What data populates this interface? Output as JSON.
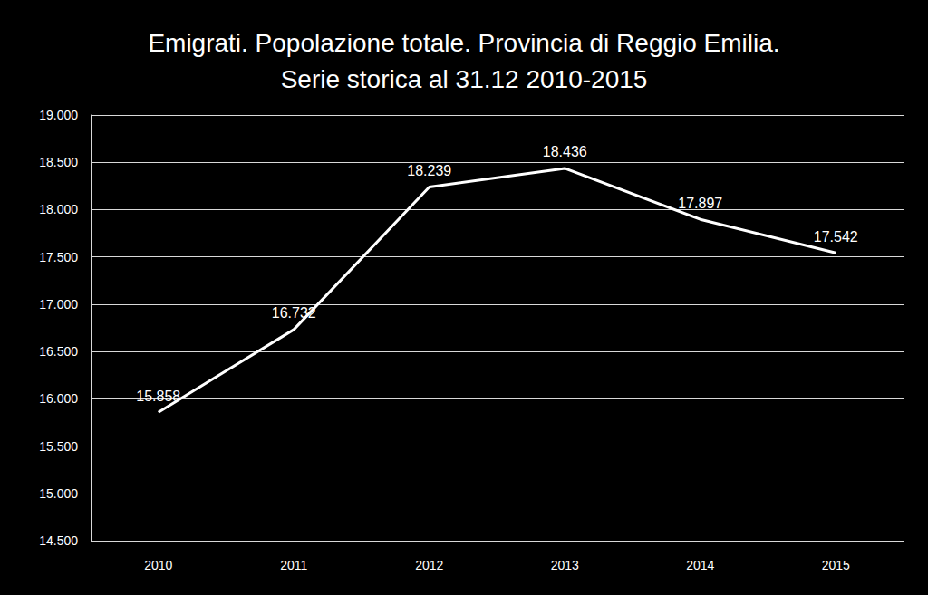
{
  "chart_data": {
    "type": "line",
    "title": "Emigrati. Popolazione totale. Provincia di Reggio Emilia.\nSerie storica al 31.12 2010-2015",
    "categories": [
      "2010",
      "2011",
      "2012",
      "2013",
      "2014",
      "2015"
    ],
    "values": [
      15858,
      16732,
      18239,
      18436,
      17897,
      17542
    ],
    "value_labels": [
      "15.858",
      "16.732",
      "18.239",
      "18.436",
      "17.897",
      "17.542"
    ],
    "color": "#ffffff",
    "marker": "none",
    "data_labels": true,
    "grid": true,
    "ylim": [
      14500,
      19000
    ],
    "yticks": [
      {
        "value": 14500,
        "label": "14.500"
      },
      {
        "value": 15000,
        "label": "15.000"
      },
      {
        "value": 15500,
        "label": "15.500"
      },
      {
        "value": 16000,
        "label": "16.000"
      },
      {
        "value": 16500,
        "label": "16.500"
      },
      {
        "value": 17000,
        "label": "17.000"
      },
      {
        "value": 17500,
        "label": "17.500"
      },
      {
        "value": 18000,
        "label": "18.000"
      },
      {
        "value": 18500,
        "label": "18.500"
      },
      {
        "value": 19000,
        "label": "19.000"
      }
    ]
  }
}
